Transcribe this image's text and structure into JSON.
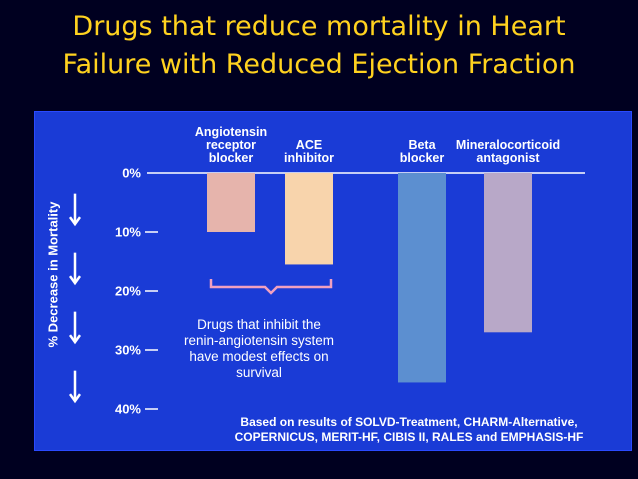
{
  "slide": {
    "title_line1": "Drugs that reduce mortality in Heart",
    "title_line2": "Failure with Reduced Ejection Fraction"
  },
  "chart_data": {
    "type": "bar",
    "orientation": "downward",
    "categories": [
      [
        "Angiotensin",
        "receptor",
        "blocker"
      ],
      [
        "ACE",
        "inhibitor"
      ],
      [
        "Beta",
        "blocker"
      ],
      [
        "Mineralocorticoid",
        "antagonist"
      ]
    ],
    "values": [
      10,
      15.5,
      35.5,
      27
    ],
    "bar_colors": [
      "#e6b4ac",
      "#f8d4ac",
      "#5c8fd0",
      "#b8a8c8"
    ],
    "ylabel": "% Decrease in Mortality",
    "yticks": [
      "0%",
      "10%",
      "20%",
      "30%",
      "40%"
    ],
    "ylim": [
      0,
      40
    ],
    "annotation": [
      "Drugs that inhibit the",
      "renin-angiotensin system",
      "have modest effects on",
      "survival"
    ],
    "source": [
      "Based on results of SOLVD-Treatment, CHARM-Alternative,",
      "COPERNICUS, MERIT-HF, CIBIS II, RALES and EMPHASIS-HF"
    ]
  }
}
